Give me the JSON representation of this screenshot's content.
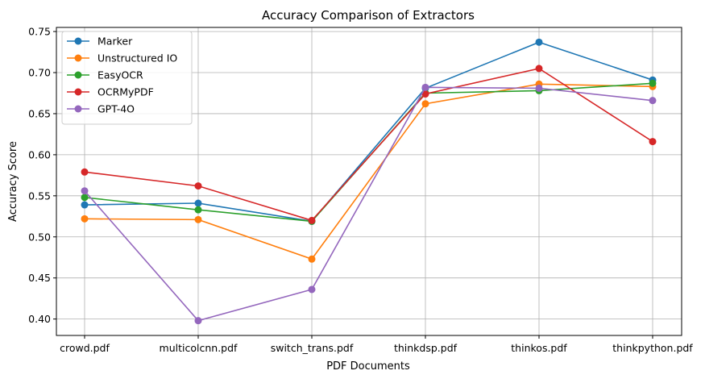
{
  "chart_data": {
    "type": "line",
    "title": "Accuracy Comparison of Extractors",
    "xlabel": "PDF Documents",
    "ylabel": "Accuracy Score",
    "categories": [
      "crowd.pdf",
      "multicolcnn.pdf",
      "switch_trans.pdf",
      "thinkdsp.pdf",
      "thinkos.pdf",
      "thinkpython.pdf"
    ],
    "ylim": [
      0.38,
      0.755
    ],
    "yticks": [
      "0.40",
      "0.45",
      "0.50",
      "0.55",
      "0.60",
      "0.65",
      "0.70",
      "0.75"
    ],
    "grid": true,
    "legend": "upper-left",
    "series": [
      {
        "name": "Marker",
        "color": "#1f77b4",
        "values": [
          0.539,
          0.541,
          0.519,
          0.681,
          0.737,
          0.691
        ]
      },
      {
        "name": "Unstructured IO",
        "color": "#ff7f0e",
        "values": [
          0.522,
          0.521,
          0.473,
          0.662,
          0.686,
          0.683
        ]
      },
      {
        "name": "EasyOCR",
        "color": "#2ca02c",
        "values": [
          0.548,
          0.533,
          0.519,
          0.675,
          0.678,
          0.687
        ]
      },
      {
        "name": "OCRMyPDF",
        "color": "#d62728",
        "values": [
          0.579,
          0.562,
          0.52,
          0.674,
          0.705,
          0.616
        ]
      },
      {
        "name": "GPT-4O",
        "color": "#9467bd",
        "values": [
          0.556,
          0.398,
          0.436,
          0.682,
          0.681,
          0.666
        ]
      }
    ]
  }
}
